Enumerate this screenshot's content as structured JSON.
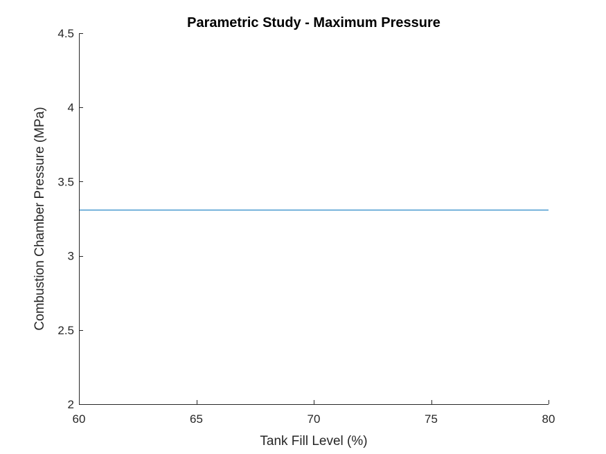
{
  "chart_data": {
    "type": "line",
    "title": "Parametric Study - Maximum Pressure",
    "xlabel": "Tank Fill Level (%)",
    "ylabel": "Combustion Chamber Pressure (MPa)",
    "xlim": [
      60,
      80
    ],
    "ylim": [
      2,
      4.5
    ],
    "x_ticks": [
      60,
      65,
      70,
      75,
      80
    ],
    "x_tick_labels": [
      "60",
      "65",
      "70",
      "75",
      "80"
    ],
    "y_ticks": [
      2,
      2.5,
      3,
      3.5,
      4,
      4.5
    ],
    "y_tick_labels": [
      "2",
      "2.5",
      "3",
      "3.5",
      "4",
      "4.5"
    ],
    "grid": false,
    "series": [
      {
        "color": "#0072BD",
        "x": [
          60,
          80
        ],
        "y": [
          3.31,
          3.31
        ]
      }
    ]
  }
}
